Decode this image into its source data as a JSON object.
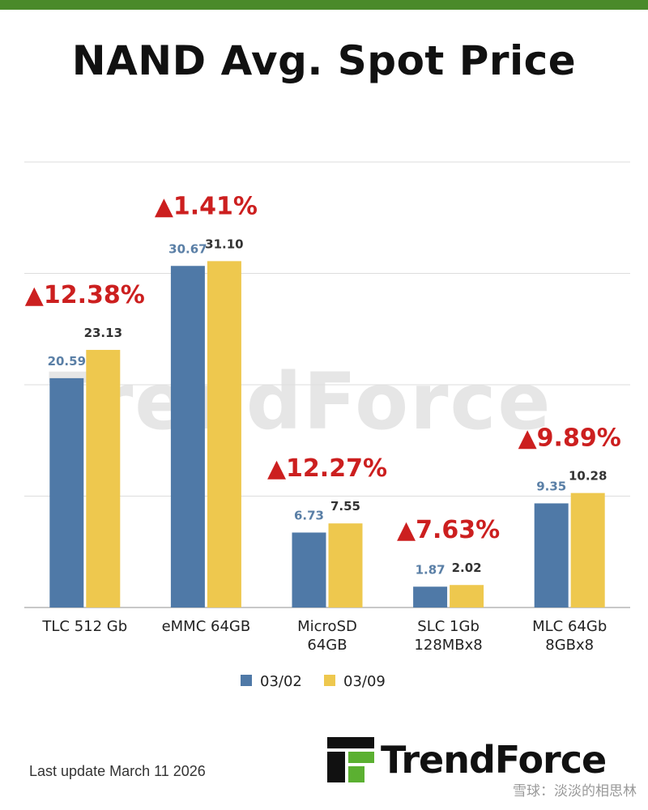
{
  "title": "NAND Avg. Spot Price",
  "footer": {
    "last_update": "Last update March 11  2026",
    "logo_text": "TrendForce",
    "watermark_text": "TrendForce",
    "credit": "雪球：淡淡的相思林"
  },
  "colors": {
    "series_0302": "#4f79a7",
    "series_0309": "#eec84e",
    "pct_label": "#cc1f1f",
    "blue_value": "#5a7fa6",
    "dark_value": "#333333",
    "top_bar": "#4a8a2a"
  },
  "chart_data": {
    "type": "bar",
    "title": "NAND Avg. Spot Price",
    "categories": [
      [
        "TLC 512 Gb"
      ],
      [
        "eMMC 64GB"
      ],
      [
        "MicroSD",
        "64GB"
      ],
      [
        "SLC 1Gb",
        "128MBx8"
      ],
      [
        "MLC 64Gb",
        "8GBx8"
      ]
    ],
    "series": [
      {
        "name": "03/02",
        "values": [
          20.59,
          30.67,
          6.73,
          1.87,
          9.35
        ],
        "labels": [
          "20.59",
          "30.67",
          "6.73",
          "1.87",
          "9.35"
        ]
      },
      {
        "name": "03/09",
        "values": [
          23.13,
          31.1,
          7.55,
          2.02,
          10.28
        ],
        "labels": [
          "23.13",
          "31.10",
          "7.55",
          "2.02",
          "10.28"
        ]
      }
    ],
    "changes": [
      "▲12.38%",
      "▲1.41%",
      "▲12.27%",
      "▲7.63%",
      "▲9.89%"
    ],
    "ylim": [
      0,
      40
    ],
    "gridlines": [
      0,
      10,
      20,
      30,
      40
    ],
    "grid": true,
    "legend_position": "bottom-center",
    "xlabel": "",
    "ylabel": ""
  }
}
